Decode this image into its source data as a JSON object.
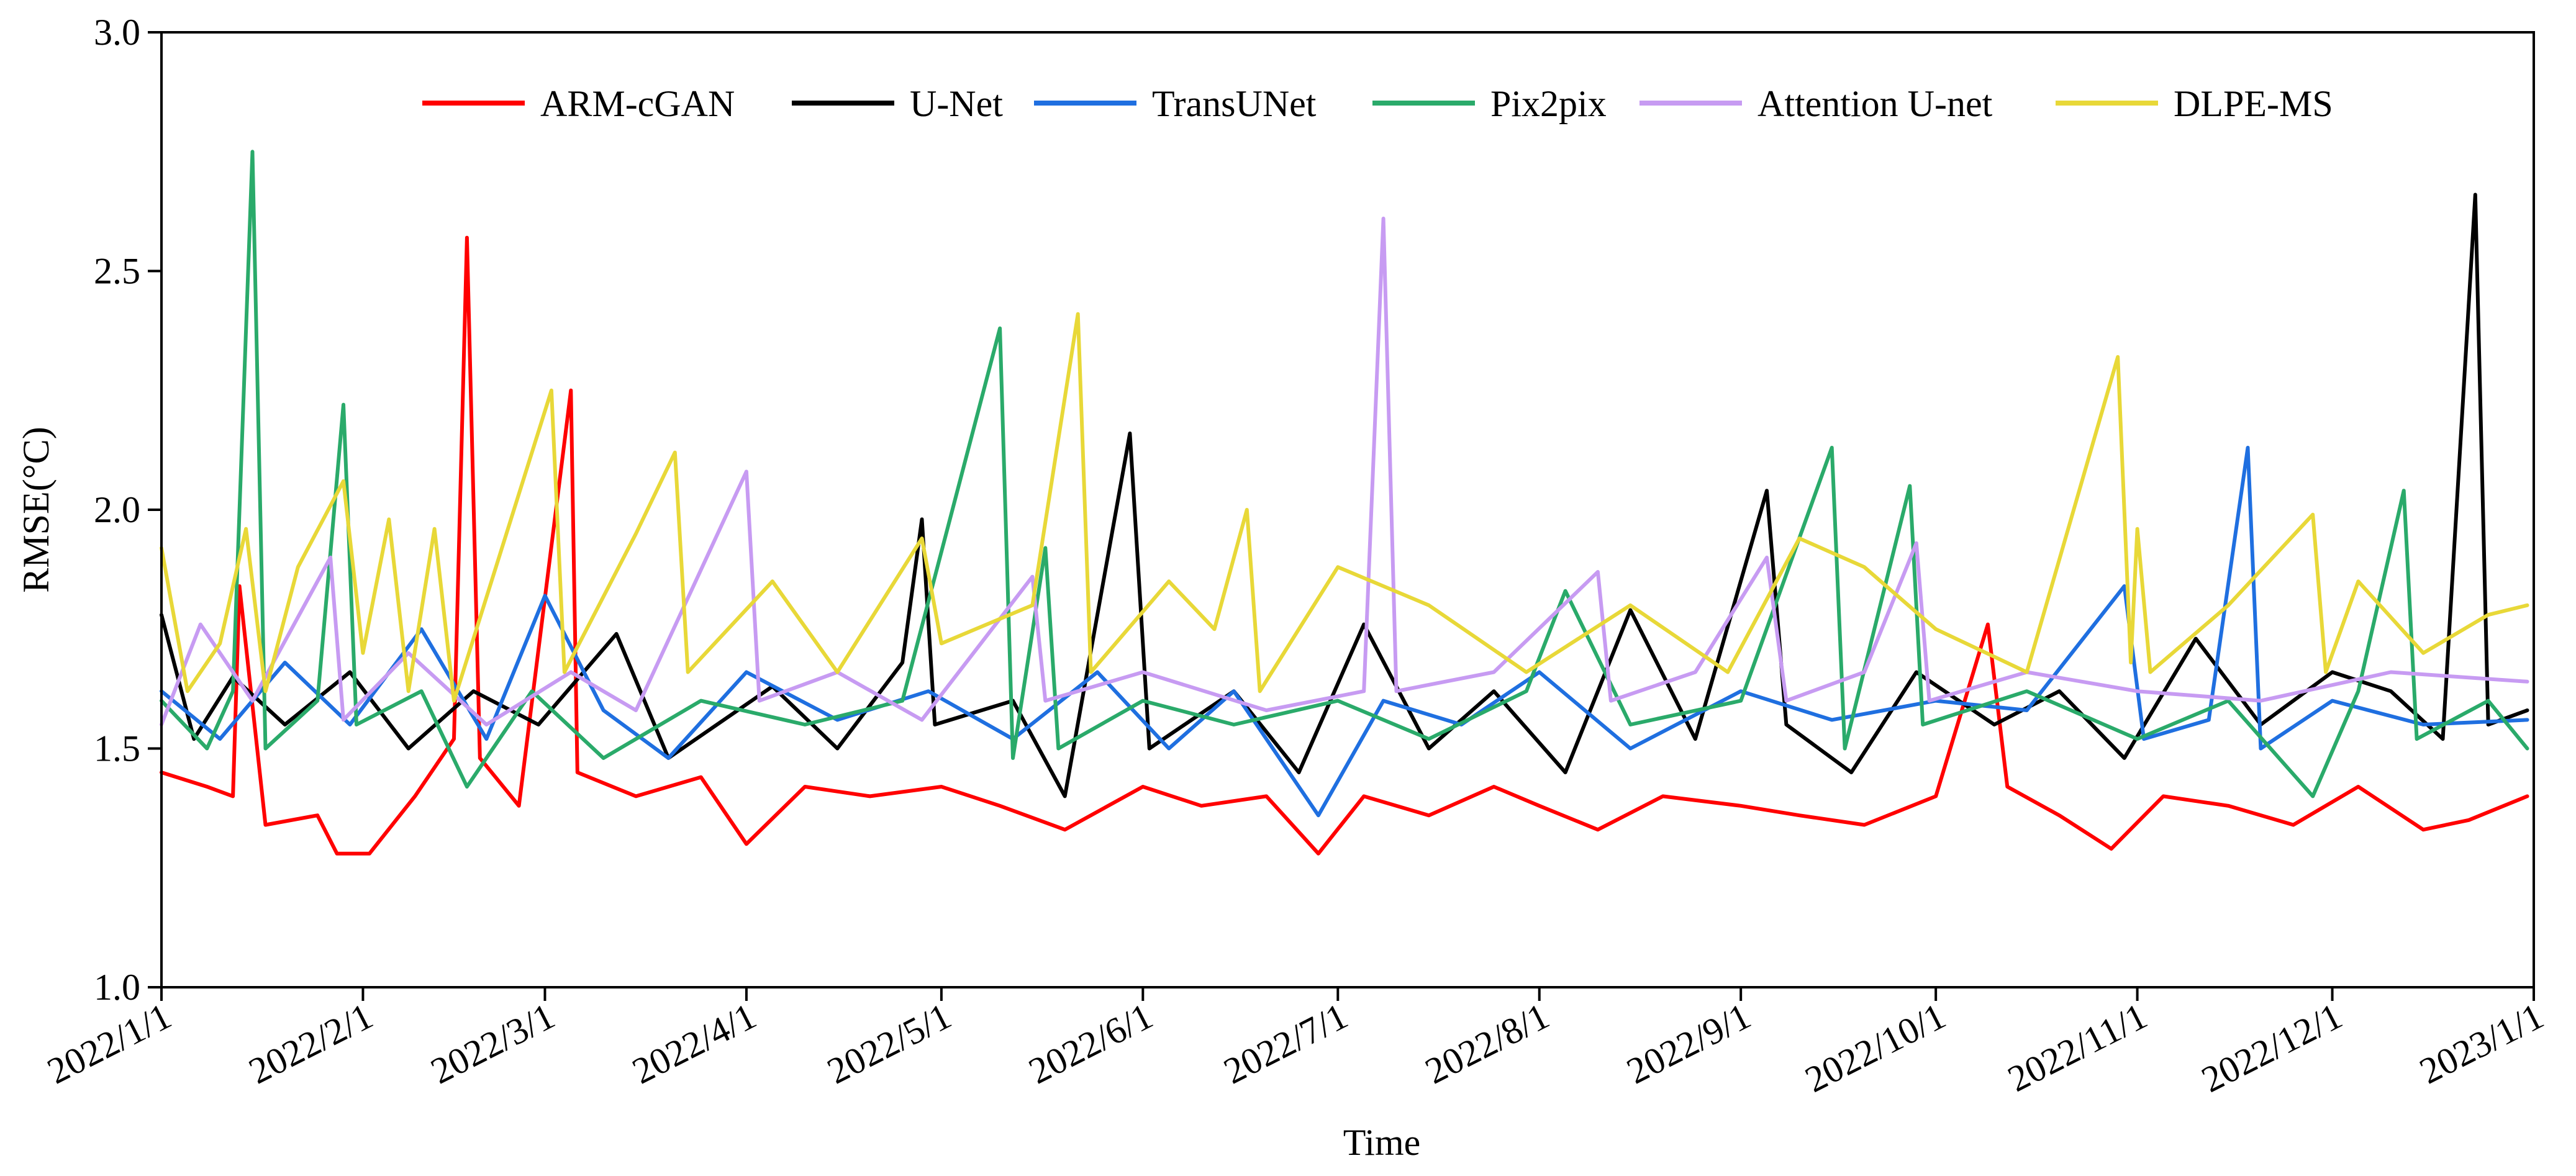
{
  "chart_data": {
    "type": "line",
    "title": "",
    "xlabel": "Time",
    "ylabel": "RMSE(°C)",
    "ylim": [
      1.0,
      3.0
    ],
    "xlim": [
      "2022-01-01",
      "2023-01-01"
    ],
    "y_ticks": [
      "1.0",
      "1.5",
      "2.0",
      "2.5",
      "3.0"
    ],
    "x_ticks": [
      {
        "date": "2022-01-01",
        "label": "2022/1/1"
      },
      {
        "date": "2022-02-01",
        "label": "2022/2/1"
      },
      {
        "date": "2022-03-01",
        "label": "2022/3/1"
      },
      {
        "date": "2022-04-01",
        "label": "2022/4/1"
      },
      {
        "date": "2022-05-01",
        "label": "2022/5/1"
      },
      {
        "date": "2022-06-01",
        "label": "2022/6/1"
      },
      {
        "date": "2022-07-01",
        "label": "2022/7/1"
      },
      {
        "date": "2022-08-01",
        "label": "2022/8/1"
      },
      {
        "date": "2022-09-01",
        "label": "2022/9/1"
      },
      {
        "date": "2022-10-01",
        "label": "2022/10/1"
      },
      {
        "date": "2022-11-01",
        "label": "2022/11/1"
      },
      {
        "date": "2022-12-01",
        "label": "2022/12/1"
      },
      {
        "date": "2023-01-01",
        "label": "2023/1/1"
      }
    ],
    "grid": false,
    "legend_position": "top",
    "series": [
      {
        "name": "ARM-cGAN",
        "color": "#ff0000",
        "points": [
          [
            "2022-01-01",
            1.45
          ],
          [
            "2022-01-08",
            1.42
          ],
          [
            "2022-01-12",
            1.4
          ],
          [
            "2022-01-13",
            1.84
          ],
          [
            "2022-01-17",
            1.34
          ],
          [
            "2022-01-25",
            1.36
          ],
          [
            "2022-01-28",
            1.28
          ],
          [
            "2022-02-02",
            1.28
          ],
          [
            "2022-02-09",
            1.4
          ],
          [
            "2022-02-15",
            1.52
          ],
          [
            "2022-02-17",
            2.57
          ],
          [
            "2022-02-19",
            1.48
          ],
          [
            "2022-02-25",
            1.38
          ],
          [
            "2022-03-05",
            2.25
          ],
          [
            "2022-03-06",
            1.45
          ],
          [
            "2022-03-15",
            1.4
          ],
          [
            "2022-03-25",
            1.44
          ],
          [
            "2022-04-01",
            1.3
          ],
          [
            "2022-04-10",
            1.42
          ],
          [
            "2022-04-20",
            1.4
          ],
          [
            "2022-05-01",
            1.42
          ],
          [
            "2022-05-10",
            1.38
          ],
          [
            "2022-05-20",
            1.33
          ],
          [
            "2022-06-01",
            1.42
          ],
          [
            "2022-06-10",
            1.38
          ],
          [
            "2022-06-20",
            1.4
          ],
          [
            "2022-06-28",
            1.28
          ],
          [
            "2022-07-05",
            1.4
          ],
          [
            "2022-07-15",
            1.36
          ],
          [
            "2022-07-25",
            1.42
          ],
          [
            "2022-08-01",
            1.38
          ],
          [
            "2022-08-10",
            1.33
          ],
          [
            "2022-08-20",
            1.4
          ],
          [
            "2022-09-01",
            1.38
          ],
          [
            "2022-09-10",
            1.36
          ],
          [
            "2022-09-20",
            1.34
          ],
          [
            "2022-10-01",
            1.4
          ],
          [
            "2022-10-09",
            1.76
          ],
          [
            "2022-10-12",
            1.42
          ],
          [
            "2022-10-20",
            1.36
          ],
          [
            "2022-10-28",
            1.29
          ],
          [
            "2022-11-05",
            1.4
          ],
          [
            "2022-11-15",
            1.38
          ],
          [
            "2022-11-25",
            1.34
          ],
          [
            "2022-12-05",
            1.42
          ],
          [
            "2022-12-15",
            1.33
          ],
          [
            "2022-12-22",
            1.35
          ],
          [
            "2022-12-31",
            1.4
          ]
        ]
      },
      {
        "name": "U-Net",
        "color": "#000000",
        "points": [
          [
            "2022-01-01",
            1.78
          ],
          [
            "2022-01-06",
            1.52
          ],
          [
            "2022-01-12",
            1.65
          ],
          [
            "2022-01-20",
            1.55
          ],
          [
            "2022-01-30",
            1.66
          ],
          [
            "2022-02-08",
            1.5
          ],
          [
            "2022-02-18",
            1.62
          ],
          [
            "2022-02-28",
            1.55
          ],
          [
            "2022-03-12",
            1.74
          ],
          [
            "2022-03-20",
            1.48
          ],
          [
            "2022-04-05",
            1.63
          ],
          [
            "2022-04-15",
            1.5
          ],
          [
            "2022-04-25",
            1.68
          ],
          [
            "2022-04-28",
            1.98
          ],
          [
            "2022-04-30",
            1.55
          ],
          [
            "2022-05-12",
            1.6
          ],
          [
            "2022-05-20",
            1.4
          ],
          [
            "2022-05-30",
            2.16
          ],
          [
            "2022-06-02",
            1.5
          ],
          [
            "2022-06-15",
            1.62
          ],
          [
            "2022-06-25",
            1.45
          ],
          [
            "2022-07-05",
            1.76
          ],
          [
            "2022-07-15",
            1.5
          ],
          [
            "2022-07-25",
            1.62
          ],
          [
            "2022-08-05",
            1.45
          ],
          [
            "2022-08-15",
            1.79
          ],
          [
            "2022-08-25",
            1.52
          ],
          [
            "2022-09-05",
            2.04
          ],
          [
            "2022-09-08",
            1.55
          ],
          [
            "2022-09-18",
            1.45
          ],
          [
            "2022-09-28",
            1.66
          ],
          [
            "2022-10-10",
            1.55
          ],
          [
            "2022-10-20",
            1.62
          ],
          [
            "2022-10-30",
            1.48
          ],
          [
            "2022-11-10",
            1.73
          ],
          [
            "2022-11-20",
            1.55
          ],
          [
            "2022-12-01",
            1.66
          ],
          [
            "2022-12-10",
            1.62
          ],
          [
            "2022-12-18",
            1.52
          ],
          [
            "2022-12-23",
            2.66
          ],
          [
            "2022-12-25",
            1.55
          ],
          [
            "2022-12-31",
            1.58
          ]
        ]
      },
      {
        "name": "TransUNet",
        "color": "#1f6fe0",
        "points": [
          [
            "2022-01-01",
            1.62
          ],
          [
            "2022-01-10",
            1.52
          ],
          [
            "2022-01-20",
            1.68
          ],
          [
            "2022-01-30",
            1.55
          ],
          [
            "2022-02-10",
            1.75
          ],
          [
            "2022-02-20",
            1.52
          ],
          [
            "2022-03-01",
            1.82
          ],
          [
            "2022-03-10",
            1.58
          ],
          [
            "2022-03-20",
            1.48
          ],
          [
            "2022-04-01",
            1.66
          ],
          [
            "2022-04-15",
            1.56
          ],
          [
            "2022-04-29",
            1.62
          ],
          [
            "2022-05-12",
            1.52
          ],
          [
            "2022-05-25",
            1.66
          ],
          [
            "2022-06-05",
            1.5
          ],
          [
            "2022-06-15",
            1.62
          ],
          [
            "2022-06-28",
            1.36
          ],
          [
            "2022-07-08",
            1.6
          ],
          [
            "2022-07-20",
            1.55
          ],
          [
            "2022-08-01",
            1.66
          ],
          [
            "2022-08-15",
            1.5
          ],
          [
            "2022-09-01",
            1.62
          ],
          [
            "2022-09-15",
            1.56
          ],
          [
            "2022-10-01",
            1.6
          ],
          [
            "2022-10-15",
            1.58
          ],
          [
            "2022-10-30",
            1.84
          ],
          [
            "2022-11-02",
            1.52
          ],
          [
            "2022-11-12",
            1.56
          ],
          [
            "2022-11-18",
            2.13
          ],
          [
            "2022-11-20",
            1.5
          ],
          [
            "2022-12-01",
            1.6
          ],
          [
            "2022-12-15",
            1.55
          ],
          [
            "2022-12-31",
            1.56
          ]
        ]
      },
      {
        "name": "Pix2pix",
        "color": "#2aaa6a",
        "points": [
          [
            "2022-01-01",
            1.6
          ],
          [
            "2022-01-08",
            1.5
          ],
          [
            "2022-01-12",
            1.62
          ],
          [
            "2022-01-15",
            2.75
          ],
          [
            "2022-01-17",
            1.5
          ],
          [
            "2022-01-25",
            1.6
          ],
          [
            "2022-01-29",
            2.22
          ],
          [
            "2022-01-31",
            1.55
          ],
          [
            "2022-02-10",
            1.62
          ],
          [
            "2022-02-17",
            1.42
          ],
          [
            "2022-02-27",
            1.62
          ],
          [
            "2022-03-10",
            1.48
          ],
          [
            "2022-03-25",
            1.6
          ],
          [
            "2022-04-10",
            1.55
          ],
          [
            "2022-04-25",
            1.6
          ],
          [
            "2022-05-10",
            2.38
          ],
          [
            "2022-05-12",
            1.48
          ],
          [
            "2022-05-17",
            1.92
          ],
          [
            "2022-05-19",
            1.5
          ],
          [
            "2022-06-01",
            1.6
          ],
          [
            "2022-06-15",
            1.55
          ],
          [
            "2022-07-01",
            1.6
          ],
          [
            "2022-07-15",
            1.52
          ],
          [
            "2022-07-30",
            1.62
          ],
          [
            "2022-08-05",
            1.83
          ],
          [
            "2022-08-15",
            1.55
          ],
          [
            "2022-09-01",
            1.6
          ],
          [
            "2022-09-15",
            2.13
          ],
          [
            "2022-09-17",
            1.5
          ],
          [
            "2022-09-27",
            2.05
          ],
          [
            "2022-09-29",
            1.55
          ],
          [
            "2022-10-15",
            1.62
          ],
          [
            "2022-11-01",
            1.52
          ],
          [
            "2022-11-15",
            1.6
          ],
          [
            "2022-11-28",
            1.4
          ],
          [
            "2022-12-05",
            1.62
          ],
          [
            "2022-12-12",
            2.04
          ],
          [
            "2022-12-14",
            1.52
          ],
          [
            "2022-12-25",
            1.6
          ],
          [
            "2022-12-31",
            1.5
          ]
        ]
      },
      {
        "name": "Attention U-net",
        "color": "#c79bf2",
        "points": [
          [
            "2022-01-01",
            1.55
          ],
          [
            "2022-01-07",
            1.76
          ],
          [
            "2022-01-15",
            1.6
          ],
          [
            "2022-01-27",
            1.9
          ],
          [
            "2022-01-29",
            1.56
          ],
          [
            "2022-02-08",
            1.7
          ],
          [
            "2022-02-20",
            1.55
          ],
          [
            "2022-03-05",
            1.66
          ],
          [
            "2022-03-15",
            1.58
          ],
          [
            "2022-04-01",
            2.08
          ],
          [
            "2022-04-03",
            1.6
          ],
          [
            "2022-04-15",
            1.66
          ],
          [
            "2022-04-28",
            1.56
          ],
          [
            "2022-05-15",
            1.86
          ],
          [
            "2022-05-17",
            1.6
          ],
          [
            "2022-06-01",
            1.66
          ],
          [
            "2022-06-20",
            1.58
          ],
          [
            "2022-07-05",
            1.62
          ],
          [
            "2022-07-08",
            2.61
          ],
          [
            "2022-07-10",
            1.62
          ],
          [
            "2022-07-25",
            1.66
          ],
          [
            "2022-08-10",
            1.87
          ],
          [
            "2022-08-12",
            1.6
          ],
          [
            "2022-08-25",
            1.66
          ],
          [
            "2022-09-05",
            1.9
          ],
          [
            "2022-09-08",
            1.6
          ],
          [
            "2022-09-20",
            1.66
          ],
          [
            "2022-09-28",
            1.93
          ],
          [
            "2022-09-30",
            1.6
          ],
          [
            "2022-10-15",
            1.66
          ],
          [
            "2022-11-01",
            1.62
          ],
          [
            "2022-11-20",
            1.6
          ],
          [
            "2022-12-10",
            1.66
          ],
          [
            "2022-12-31",
            1.64
          ]
        ]
      },
      {
        "name": "DLPE-MS",
        "color": "#e8d838",
        "points": [
          [
            "2022-01-01",
            1.92
          ],
          [
            "2022-01-05",
            1.62
          ],
          [
            "2022-01-10",
            1.72
          ],
          [
            "2022-01-14",
            1.96
          ],
          [
            "2022-01-17",
            1.62
          ],
          [
            "2022-01-22",
            1.88
          ],
          [
            "2022-01-29",
            2.06
          ],
          [
            "2022-02-01",
            1.7
          ],
          [
            "2022-02-05",
            1.98
          ],
          [
            "2022-02-08",
            1.62
          ],
          [
            "2022-02-12",
            1.96
          ],
          [
            "2022-02-15",
            1.6
          ],
          [
            "2022-03-02",
            2.25
          ],
          [
            "2022-03-04",
            1.66
          ],
          [
            "2022-03-15",
            1.95
          ],
          [
            "2022-03-21",
            2.12
          ],
          [
            "2022-03-23",
            1.66
          ],
          [
            "2022-04-05",
            1.85
          ],
          [
            "2022-04-15",
            1.66
          ],
          [
            "2022-04-28",
            1.94
          ],
          [
            "2022-05-01",
            1.72
          ],
          [
            "2022-05-15",
            1.8
          ],
          [
            "2022-05-22",
            2.41
          ],
          [
            "2022-05-24",
            1.66
          ],
          [
            "2022-06-05",
            1.85
          ],
          [
            "2022-06-12",
            1.75
          ],
          [
            "2022-06-17",
            2.0
          ],
          [
            "2022-06-19",
            1.62
          ],
          [
            "2022-07-01",
            1.88
          ],
          [
            "2022-07-15",
            1.8
          ],
          [
            "2022-07-30",
            1.66
          ],
          [
            "2022-08-15",
            1.8
          ],
          [
            "2022-08-30",
            1.66
          ],
          [
            "2022-09-10",
            1.94
          ],
          [
            "2022-09-20",
            1.88
          ],
          [
            "2022-10-01",
            1.75
          ],
          [
            "2022-10-15",
            1.66
          ],
          [
            "2022-10-29",
            2.32
          ],
          [
            "2022-10-31",
            1.68
          ],
          [
            "2022-11-01",
            1.96
          ],
          [
            "2022-11-03",
            1.66
          ],
          [
            "2022-11-15",
            1.8
          ],
          [
            "2022-11-28",
            1.99
          ],
          [
            "2022-11-30",
            1.66
          ],
          [
            "2022-12-05",
            1.85
          ],
          [
            "2022-12-15",
            1.7
          ],
          [
            "2022-12-25",
            1.78
          ],
          [
            "2022-12-31",
            1.8
          ]
        ]
      }
    ]
  }
}
